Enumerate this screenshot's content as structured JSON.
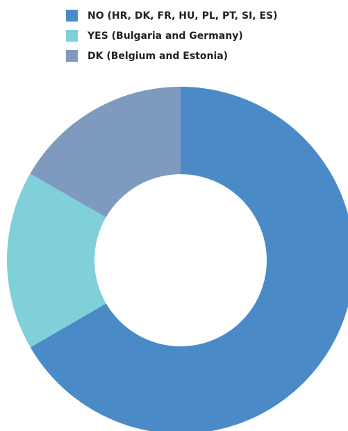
{
  "chart_data": {
    "type": "donut",
    "series": [
      {
        "name": "NO (HR, DK, FR, HU, PL, PT, SI, ES)",
        "color": "#4a8bc7",
        "value": 66.7
      },
      {
        "name": "YES (Bulgaria and Germany)",
        "color": "#80d0da",
        "value": 16.7
      },
      {
        "name": "DK (Belgium and Estonia)",
        "color": "#7f9abf",
        "value": 16.7
      }
    ],
    "legend": "top"
  }
}
